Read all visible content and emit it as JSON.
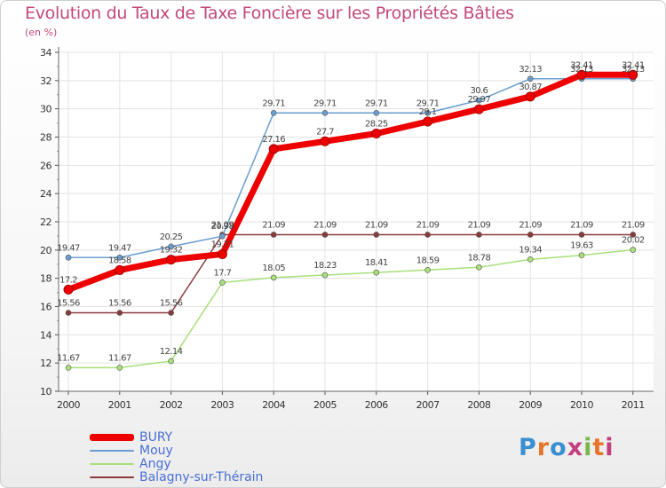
{
  "title": "Evolution du Taux de Taxe Foncière sur les Propriétés Bâties",
  "subtitle": "(en %)",
  "logo_text": "Proxiti",
  "logo_colors": [
    "#3a8fd0",
    "#e8742a",
    "#3a8fd0",
    "#c33f7e",
    "#7ab648",
    "#e8742a",
    "#c33f7e"
  ],
  "chart_data": {
    "type": "line",
    "x": [
      "2000",
      "2001",
      "2002",
      "2003",
      "2004",
      "2005",
      "2006",
      "2007",
      "2008",
      "2009",
      "2010",
      "2011"
    ],
    "yticks": [
      "10",
      "12",
      "14",
      "16",
      "18",
      "20",
      "22",
      "24",
      "26",
      "28",
      "30",
      "32",
      "34"
    ],
    "ylim": [
      10,
      34
    ],
    "grid": true,
    "legend_position": "bottom-left",
    "series": [
      {
        "name": "BURY",
        "color": "#ee0000",
        "values": [
          17.2,
          18.58,
          19.32,
          19.71,
          27.16,
          27.7,
          28.25,
          29.1,
          29.97,
          30.87,
          32.41,
          32.41
        ],
        "labels": [
          "17.2",
          "18.58",
          "19.32",
          "19.71",
          "27.16",
          "27.7",
          "28.25",
          "29.1",
          "29.97",
          "30.87",
          "32.41",
          "32.41"
        ]
      },
      {
        "name": "Mouy",
        "color": "#6b9ed0",
        "values": [
          19.47,
          19.47,
          20.25,
          20.98,
          29.71,
          29.71,
          29.71,
          29.71,
          30.6,
          32.13,
          32.13,
          32.13
        ],
        "labels": [
          "19.47",
          "19.47",
          "20.25",
          "20.98",
          "29.71",
          "29.71",
          "29.71",
          "29.71",
          "30.6",
          "32.13",
          "32.13",
          "32.13"
        ]
      },
      {
        "name": "Angy",
        "color": "#a8e07a",
        "values": [
          11.67,
          11.67,
          12.14,
          17.7,
          18.05,
          18.23,
          18.41,
          18.59,
          18.78,
          19.34,
          19.63,
          20.02
        ],
        "labels": [
          "11.67",
          "11.67",
          "12.14",
          "17.7",
          "18.05",
          "18.23",
          "18.41",
          "18.59",
          "18.78",
          "19.34",
          "19.63",
          "20.02"
        ]
      },
      {
        "name": "Balagny-sur-Thérain",
        "color": "#8b3a3a",
        "values": [
          15.56,
          15.56,
          15.56,
          21.09,
          21.09,
          21.09,
          21.09,
          21.09,
          21.09,
          21.09,
          21.09,
          21.09
        ],
        "labels": [
          "15.56",
          "15.56",
          "15.56",
          "21.09",
          "21.09",
          "21.09",
          "21.09",
          "21.09",
          "21.09",
          "21.09",
          "21.09",
          "21.09"
        ]
      }
    ]
  }
}
